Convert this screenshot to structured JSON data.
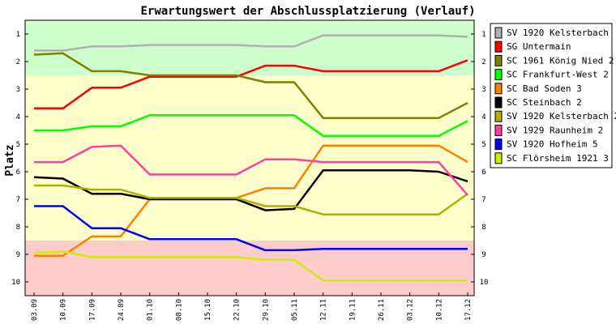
{
  "chart_data": {
    "type": "line",
    "title": "Erwartungswert der Abschlussplatzierung (Verlauf)",
    "ylabel": "Platz",
    "xlabel": "",
    "y_reversed": true,
    "ylim": [
      0.5,
      10.5
    ],
    "y_ticks": [
      1,
      2,
      3,
      4,
      5,
      6,
      7,
      8,
      9,
      10
    ],
    "categories": [
      "03.09",
      "10.09",
      "17.09",
      "24.09",
      "01.10",
      "08.10",
      "15.10",
      "22.10",
      "29.10",
      "05.11",
      "12.11",
      "19.11",
      "26.11",
      "03.12",
      "10.12",
      "17.12"
    ],
    "zones": [
      {
        "name": "promotion",
        "from": 0.5,
        "to": 2.5,
        "color": "#ccffcc"
      },
      {
        "name": "middle",
        "from": 2.5,
        "to": 8.5,
        "color": "#ffffcc"
      },
      {
        "name": "relegation",
        "from": 8.5,
        "to": 10.5,
        "color": "#ffcccc"
      }
    ],
    "legend_position": "right",
    "series": [
      {
        "name": "SV 1920 Kelsterbach",
        "color": "#b0b0b0",
        "values": [
          1.6,
          1.6,
          1.45,
          1.45,
          1.4,
          1.4,
          1.4,
          1.4,
          1.45,
          1.45,
          1.05,
          1.05,
          1.05,
          1.05,
          1.05,
          1.1
        ]
      },
      {
        "name": "SG Untermain",
        "color": "#ff0000",
        "values": [
          3.7,
          3.7,
          2.95,
          2.95,
          2.55,
          2.55,
          2.55,
          2.55,
          2.15,
          2.15,
          2.35,
          2.35,
          2.35,
          2.35,
          2.35,
          1.95
        ]
      },
      {
        "name": "SC 1961 König Nied 2",
        "color": "#808000",
        "values": [
          1.75,
          1.7,
          2.35,
          2.35,
          2.5,
          2.5,
          2.5,
          2.5,
          2.75,
          2.75,
          4.05,
          4.05,
          4.05,
          4.05,
          4.05,
          3.5
        ]
      },
      {
        "name": "SC Frankfurt-West 2",
        "color": "#00ff00",
        "values": [
          4.5,
          4.5,
          4.35,
          4.35,
          3.95,
          3.95,
          3.95,
          3.95,
          3.95,
          3.95,
          4.7,
          4.7,
          4.7,
          4.7,
          4.7,
          4.15
        ]
      },
      {
        "name": "SC Bad Soden 3",
        "color": "#ff8000",
        "values": [
          9.05,
          9.05,
          8.35,
          8.35,
          7.0,
          6.95,
          6.95,
          6.95,
          6.6,
          6.6,
          5.05,
          5.05,
          5.05,
          5.05,
          5.05,
          5.65
        ]
      },
      {
        "name": "SC Steinbach 2",
        "color": "#000000",
        "values": [
          6.2,
          6.25,
          6.8,
          6.8,
          7.0,
          7.0,
          7.0,
          7.0,
          7.4,
          7.35,
          5.95,
          5.95,
          5.95,
          5.95,
          6.0,
          6.35
        ]
      },
      {
        "name": "SV 1920 Kelsterbach 2",
        "color": "#b0b000",
        "values": [
          6.5,
          6.5,
          6.65,
          6.65,
          6.95,
          6.95,
          6.95,
          6.95,
          7.25,
          7.25,
          7.55,
          7.55,
          7.55,
          7.55,
          7.55,
          6.8
        ]
      },
      {
        "name": "SV 1929 Raunheim 2",
        "color": "#ff40a0",
        "values": [
          5.65,
          5.65,
          5.1,
          5.05,
          6.1,
          6.1,
          6.1,
          6.1,
          5.55,
          5.55,
          5.65,
          5.65,
          5.65,
          5.65,
          5.65,
          6.85
        ]
      },
      {
        "name": "SV 1920 Hofheim 5",
        "color": "#0000ff",
        "values": [
          7.25,
          7.25,
          8.05,
          8.05,
          8.45,
          8.45,
          8.45,
          8.45,
          8.85,
          8.85,
          8.8,
          8.8,
          8.8,
          8.8,
          8.8,
          8.8
        ]
      },
      {
        "name": "SC Flörsheim 1921 3",
        "color": "#ccee00",
        "values": [
          8.95,
          8.9,
          9.1,
          9.1,
          9.1,
          9.1,
          9.1,
          9.1,
          9.2,
          9.2,
          9.95,
          9.95,
          9.95,
          9.95,
          9.95,
          9.95
        ]
      }
    ]
  }
}
